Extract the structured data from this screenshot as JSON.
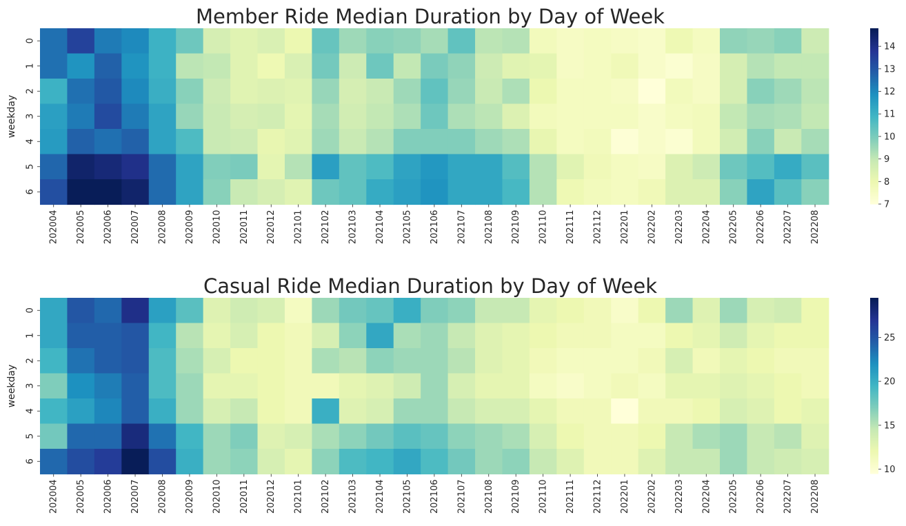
{
  "chart_data": [
    {
      "type": "heatmap",
      "title": "Member Ride Median Duration by Day of Week",
      "xlabel": "",
      "ylabel": "weekday",
      "x": [
        "202004",
        "202005",
        "202006",
        "202007",
        "202008",
        "202009",
        "202010",
        "202011",
        "202012",
        "202101",
        "202102",
        "202103",
        "202104",
        "202105",
        "202106",
        "202107",
        "202108",
        "202109",
        "202110",
        "202111",
        "202112",
        "202201",
        "202202",
        "202203",
        "202204",
        "202205",
        "202206",
        "202207",
        "202208"
      ],
      "y": [
        "0",
        "1",
        "2",
        "3",
        "4",
        "5",
        "6"
      ],
      "values": [
        [
          12.5,
          13.5,
          12.3,
          12.0,
          11.0,
          10.2,
          8.6,
          8.3,
          8.5,
          8.0,
          10.3,
          9.5,
          9.8,
          9.7,
          9.4,
          10.4,
          9.1,
          9.2,
          7.7,
          7.5,
          7.6,
          7.5,
          7.4,
          7.9,
          7.6,
          9.7,
          9.6,
          9.8,
          8.8
        ],
        [
          12.5,
          11.8,
          12.8,
          11.8,
          11.0,
          9.1,
          9.0,
          8.3,
          7.9,
          8.5,
          10.1,
          8.8,
          10.2,
          9.0,
          10.0,
          9.7,
          8.8,
          8.3,
          8.2,
          7.5,
          7.6,
          7.8,
          7.4,
          7.2,
          7.5,
          8.6,
          9.2,
          9.0,
          9.0
        ],
        [
          11.0,
          12.5,
          13.0,
          12.0,
          11.1,
          9.8,
          8.8,
          8.3,
          8.4,
          8.3,
          9.6,
          8.6,
          8.9,
          9.5,
          10.4,
          9.6,
          8.9,
          9.3,
          8.0,
          7.6,
          7.6,
          7.5,
          6.9,
          7.7,
          7.5,
          8.6,
          9.8,
          9.5,
          9.1
        ],
        [
          11.5,
          12.3,
          13.3,
          12.3,
          11.4,
          9.6,
          8.9,
          8.6,
          8.7,
          8.2,
          9.4,
          8.7,
          9.0,
          9.3,
          10.2,
          9.3,
          9.1,
          8.4,
          7.7,
          7.6,
          7.6,
          7.6,
          7.4,
          7.6,
          7.7,
          9.0,
          9.4,
          9.3,
          9.0
        ],
        [
          11.6,
          12.8,
          12.5,
          12.8,
          11.4,
          10.7,
          8.9,
          8.8,
          8.1,
          8.3,
          9.5,
          8.9,
          9.2,
          9.9,
          9.9,
          9.9,
          9.5,
          9.3,
          8.1,
          7.6,
          7.7,
          7.1,
          7.4,
          7.2,
          7.7,
          8.7,
          9.8,
          8.9,
          9.4
        ],
        [
          12.7,
          14.5,
          14.3,
          14.0,
          12.6,
          11.4,
          9.9,
          10.0,
          8.2,
          9.2,
          11.5,
          10.4,
          10.7,
          11.4,
          11.7,
          11.3,
          11.3,
          10.6,
          9.2,
          8.3,
          7.8,
          7.6,
          7.5,
          8.4,
          8.8,
          10.2,
          10.6,
          11.2,
          10.5
        ],
        [
          13.2,
          14.8,
          15.0,
          14.5,
          12.6,
          11.4,
          9.8,
          8.9,
          8.6,
          8.3,
          10.2,
          10.4,
          11.2,
          11.5,
          11.8,
          11.3,
          11.3,
          10.8,
          9.2,
          7.9,
          7.7,
          7.6,
          7.8,
          8.4,
          8.4,
          9.8,
          11.4,
          10.5,
          9.8
        ]
      ],
      "vmin": 7,
      "vmax": 14.8,
      "colorbar_ticks": [
        "7",
        "8",
        "9",
        "10",
        "11",
        "12",
        "13",
        "14"
      ]
    },
    {
      "type": "heatmap",
      "title": "Casual Ride Median Duration by Day of Week",
      "xlabel": "",
      "ylabel": "weekday",
      "x": [
        "202004",
        "202005",
        "202006",
        "202007",
        "202008",
        "202009",
        "202010",
        "202011",
        "202012",
        "202101",
        "202102",
        "202103",
        "202104",
        "202105",
        "202106",
        "202107",
        "202108",
        "202109",
        "202110",
        "202111",
        "202112",
        "202201",
        "202202",
        "202203",
        "202204",
        "202205",
        "202206",
        "202207",
        "202208"
      ],
      "y": [
        "0",
        "1",
        "2",
        "3",
        "4",
        "5",
        "6"
      ],
      "values": [
        [
          20.5,
          25.0,
          24.0,
          27.5,
          21.0,
          18.5,
          13.0,
          14.0,
          13.5,
          11.0,
          16.0,
          17.5,
          18.0,
          20.0,
          17.0,
          16.5,
          14.5,
          14.5,
          12.5,
          12.0,
          11.5,
          10.5,
          12.0,
          16.0,
          13.0,
          16.0,
          13.5,
          14.0,
          12.0
        ],
        [
          20.5,
          24.5,
          24.5,
          25.0,
          19.5,
          15.0,
          12.5,
          13.5,
          12.0,
          11.5,
          13.5,
          16.5,
          20.5,
          15.5,
          16.0,
          14.5,
          13.0,
          12.5,
          12.0,
          11.5,
          11.5,
          11.0,
          11.0,
          12.0,
          12.5,
          14.0,
          12.5,
          12.0,
          12.0
        ],
        [
          19.5,
          23.5,
          24.5,
          25.0,
          19.0,
          15.5,
          13.5,
          12.0,
          12.0,
          11.5,
          15.5,
          15.0,
          16.5,
          16.0,
          16.0,
          15.0,
          13.0,
          12.5,
          11.5,
          11.0,
          11.0,
          11.0,
          11.5,
          13.5,
          11.5,
          12.5,
          12.0,
          11.5,
          11.5
        ],
        [
          17.0,
          22.0,
          23.0,
          24.5,
          19.0,
          16.0,
          12.5,
          12.5,
          12.0,
          11.5,
          11.5,
          12.5,
          13.0,
          14.0,
          16.0,
          13.5,
          12.5,
          12.5,
          11.0,
          10.5,
          11.0,
          11.5,
          11.0,
          12.5,
          12.5,
          13.0,
          12.5,
          12.0,
          11.5
        ],
        [
          19.5,
          21.0,
          22.5,
          24.5,
          20.0,
          16.0,
          13.5,
          14.5,
          12.0,
          11.5,
          20.0,
          13.0,
          13.5,
          16.0,
          16.0,
          14.5,
          13.5,
          13.5,
          12.5,
          11.5,
          11.5,
          9.5,
          11.5,
          11.5,
          12.0,
          13.5,
          13.0,
          12.0,
          12.5
        ],
        [
          17.5,
          24.0,
          24.0,
          28.0,
          23.5,
          19.5,
          16.0,
          17.0,
          13.0,
          13.5,
          15.5,
          16.5,
          17.5,
          18.5,
          18.0,
          16.5,
          16.0,
          15.5,
          13.5,
          12.0,
          11.5,
          11.5,
          12.0,
          14.5,
          15.5,
          16.0,
          14.5,
          15.0,
          13.0
        ],
        [
          24.0,
          25.5,
          26.5,
          29.5,
          25.5,
          20.0,
          16.0,
          16.5,
          13.5,
          12.5,
          16.5,
          19.0,
          19.5,
          20.5,
          19.0,
          17.5,
          16.0,
          16.5,
          14.5,
          13.0,
          11.5,
          11.5,
          13.0,
          14.5,
          14.5,
          16.0,
          14.5,
          14.0,
          13.5
        ]
      ],
      "vmin": 9.5,
      "vmax": 29.5,
      "colorbar_ticks": [
        "10",
        "15",
        "20",
        "25"
      ]
    }
  ],
  "colormap": [
    "#ffffd9",
    "#edf8b1",
    "#c7e9b4",
    "#7fcdbb",
    "#41b6c4",
    "#1d91c0",
    "#225ea8",
    "#253494",
    "#081d58"
  ]
}
